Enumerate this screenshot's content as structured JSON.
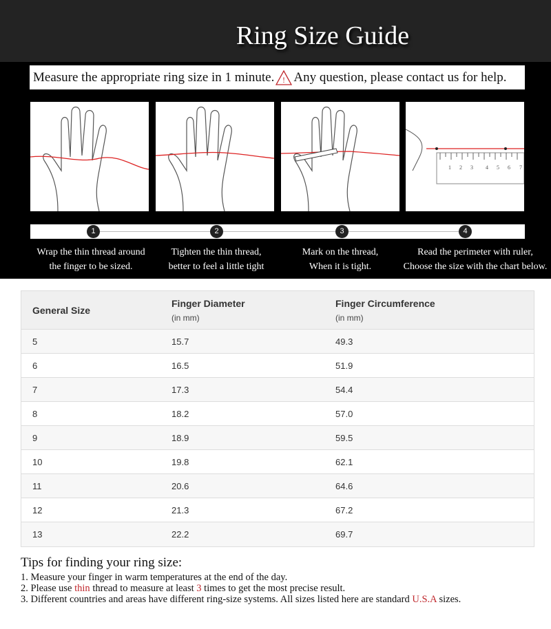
{
  "title": "Ring Size Guide",
  "banner": {
    "text_before": "Measure the appropriate ring size in 1 minute.",
    "icon": "warning-triangle-icon",
    "text_after": "Any question, please contact us for help."
  },
  "ruler_labels": [
    "1",
    "2",
    "3",
    "4",
    "5",
    "6",
    "7"
  ],
  "steps": [
    {
      "number": "1",
      "line1": "Wrap the thin thread around",
      "line2": "the finger to be sized."
    },
    {
      "number": "2",
      "line1": "Tighten the thin thread,",
      "line2": "better to feel a little tight"
    },
    {
      "number": "3",
      "line1": "Mark on the thread,",
      "line2": "When it is tight."
    },
    {
      "number": "4",
      "line1": "Read the perimeter with ruler,",
      "line2": "Choose the size with the chart below."
    }
  ],
  "table": {
    "headers": {
      "size": "General Size",
      "diameter": "Finger Diameter",
      "diameter_unit": "(in mm)",
      "circumference": "Finger Circumference",
      "circumference_unit": "(in mm)"
    },
    "rows": [
      {
        "size": "5",
        "diameter": "15.7",
        "circumference": "49.3"
      },
      {
        "size": "6",
        "diameter": "16.5",
        "circumference": "51.9"
      },
      {
        "size": "7",
        "diameter": "17.3",
        "circumference": "54.4"
      },
      {
        "size": "8",
        "diameter": "18.2",
        "circumference": "57.0"
      },
      {
        "size": "9",
        "diameter": "18.9",
        "circumference": "59.5"
      },
      {
        "size": "10",
        "diameter": "19.8",
        "circumference": "62.1"
      },
      {
        "size": "11",
        "diameter": "20.6",
        "circumference": "64.6"
      },
      {
        "size": "12",
        "diameter": "21.3",
        "circumference": "67.2"
      },
      {
        "size": "13",
        "diameter": "22.2",
        "circumference": "69.7"
      }
    ]
  },
  "tips": {
    "heading": "Tips for finding your ring size:",
    "tip1": "1. Measure your finger in warm temperatures at the end of the day.",
    "tip2_a": "2. Please use ",
    "tip2_red1": "thin",
    "tip2_b": " thread to measure at least ",
    "tip2_red2": "3",
    "tip2_c": " times to get the most precise result.",
    "tip3_a": "3. Different countries and areas have different ring-size systems. All sizes listed here are standard ",
    "tip3_red": "U.S.A",
    "tip3_b": " sizes."
  },
  "colors": {
    "accent_red": "#c0282d",
    "dark_bg": "#000000"
  }
}
